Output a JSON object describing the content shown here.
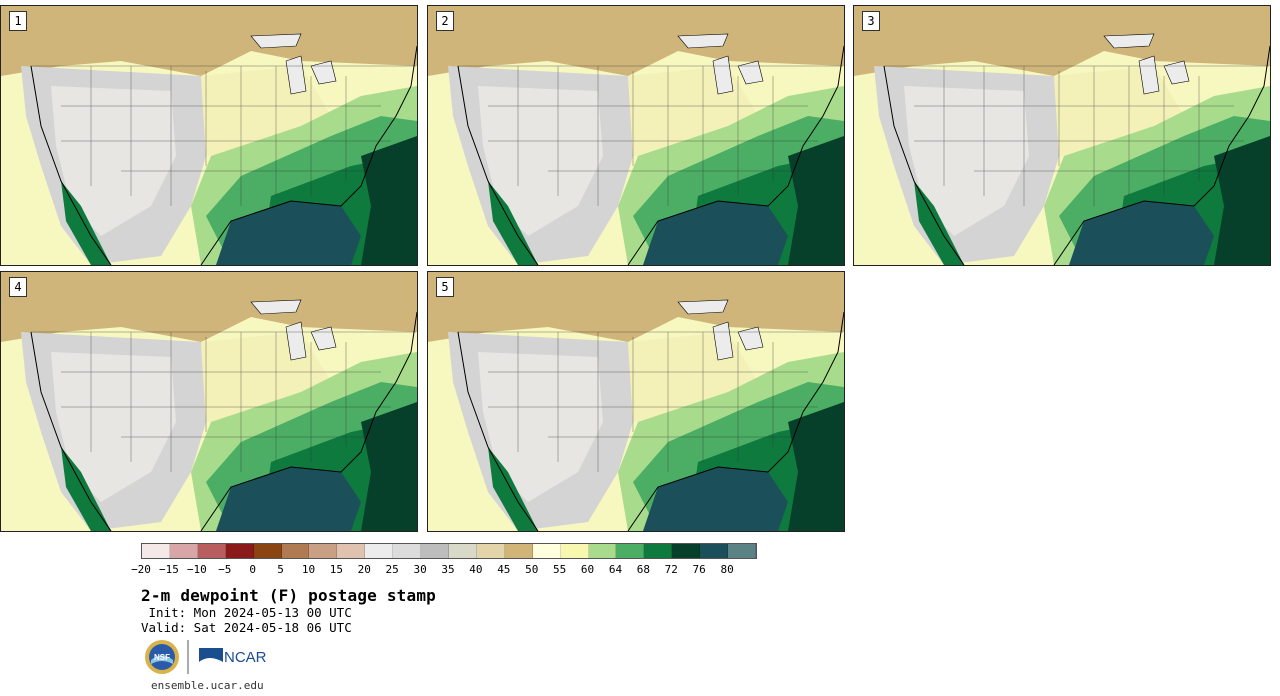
{
  "panels": [
    {
      "label": "1"
    },
    {
      "label": "2"
    },
    {
      "label": "3"
    },
    {
      "label": "4"
    },
    {
      "label": "5"
    }
  ],
  "colorbar": {
    "colors": [
      "#f5e8e8",
      "#d8a6a6",
      "#b85e5e",
      "#8b1a1a",
      "#8b4513",
      "#b07a52",
      "#c9a083",
      "#dfc3b0",
      "#ececec",
      "#dcdcdc",
      "#bdbdbd",
      "#d9d9c9",
      "#e3d4a9",
      "#d1b478",
      "#ffffe0",
      "#f7f7b0",
      "#a8dc8c",
      "#4cae64",
      "#0e7a3e",
      "#06402a",
      "#1b4f5a",
      "#5b8385"
    ],
    "labels": [
      "-20",
      "-15",
      "-10",
      "-5",
      "0",
      "5",
      "10",
      "15",
      "20",
      "25",
      "30",
      "35",
      "40",
      "45",
      "50",
      "55",
      "60",
      "64",
      "68",
      "72",
      "76",
      "80"
    ]
  },
  "title": "2-m dewpoint (F) postage stamp",
  "init": " Init: Mon 2024-05-13 00 UTC",
  "valid": "Valid: Sat 2024-05-18 06 UTC",
  "logos": {
    "nsf": "NSF",
    "ncar": "NCAR"
  },
  "footer": "ensemble.ucar.edu"
}
